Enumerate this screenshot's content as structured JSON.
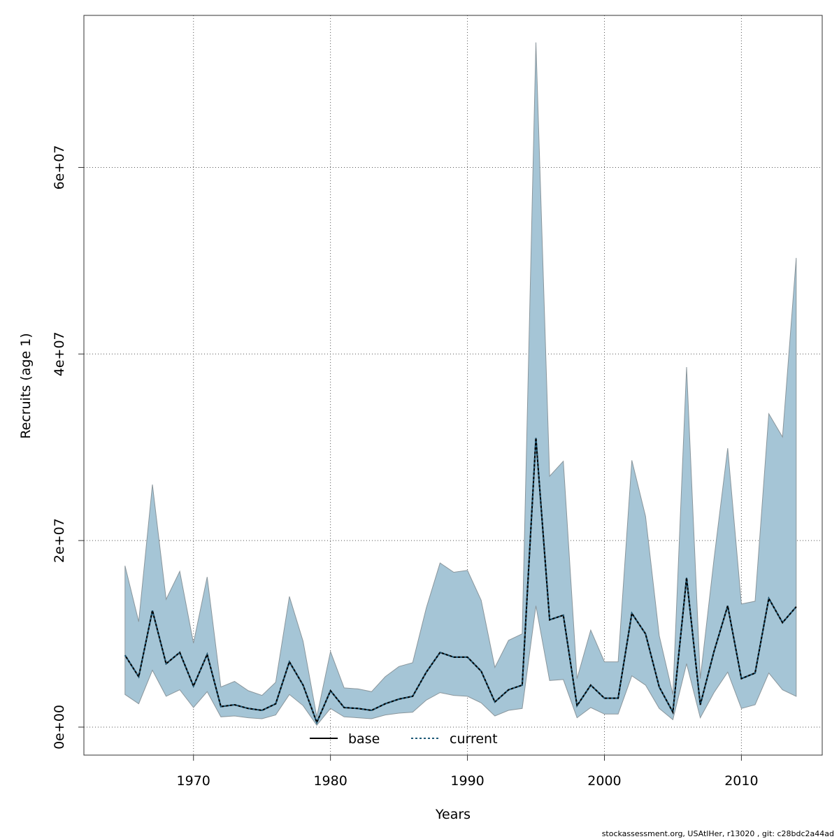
{
  "chart_data": {
    "type": "area",
    "xlabel": "Years",
    "ylabel": "Recruits (age 1)",
    "xlim": [
      1962.0,
      2015.9
    ],
    "ylim": [
      -3000000,
      76300000
    ],
    "x_ticks": [
      1970,
      1980,
      1990,
      2000,
      2010
    ],
    "x_tick_labels": [
      "1970",
      "1980",
      "1990",
      "2000",
      "2010"
    ],
    "y_ticks": [
      0,
      20000000,
      40000000,
      60000000
    ],
    "y_tick_labels": [
      "0e+00",
      "2e+07",
      "4e+07",
      "6e+07"
    ],
    "grid": true,
    "legend_position": "bottom",
    "x": [
      1965,
      1966,
      1967,
      1968,
      1969,
      1970,
      1971,
      1972,
      1973,
      1974,
      1975,
      1976,
      1977,
      1978,
      1979,
      1980,
      1981,
      1982,
      1983,
      1984,
      1985,
      1986,
      1987,
      1988,
      1989,
      1990,
      1991,
      1992,
      1993,
      1994,
      1995,
      1996,
      1997,
      1998,
      1999,
      2000,
      2001,
      2002,
      2003,
      2004,
      2005,
      2006,
      2007,
      2008,
      2009,
      2010,
      2011,
      2012,
      2013,
      2014
    ],
    "series": [
      {
        "name": "base",
        "style": "solid",
        "values": [
          7700000,
          5400000,
          12500000,
          6800000,
          8000000,
          4400000,
          7800000,
          2200000,
          2400000,
          2000000,
          1800000,
          2500000,
          7000000,
          4500000,
          500000,
          3900000,
          2100000,
          2000000,
          1800000,
          2500000,
          3000000,
          3300000,
          5900000,
          8000000,
          7500000,
          7500000,
          6000000,
          2700000,
          4000000,
          4500000,
          31000000,
          11500000,
          12000000,
          2300000,
          4500000,
          3100000,
          3100000,
          12200000,
          10000000,
          4300000,
          1600000,
          16000000,
          2400000,
          8100000,
          13000000,
          5200000,
          5800000,
          13800000,
          11200000,
          12900000
        ]
      },
      {
        "name": "current",
        "style": "dotted",
        "values": [
          7700000,
          5400000,
          12500000,
          6800000,
          8000000,
          4400000,
          7800000,
          2200000,
          2400000,
          2000000,
          1800000,
          2500000,
          7000000,
          4500000,
          500000,
          3900000,
          2100000,
          2000000,
          1800000,
          2500000,
          3000000,
          3300000,
          5900000,
          8000000,
          7500000,
          7500000,
          6000000,
          2700000,
          4000000,
          4500000,
          31000000,
          11500000,
          12000000,
          2300000,
          4500000,
          3100000,
          3100000,
          12200000,
          10000000,
          4300000,
          1600000,
          16000000,
          2400000,
          8100000,
          13000000,
          5200000,
          5800000,
          13800000,
          11200000,
          12900000
        ]
      }
    ],
    "band": {
      "lower": [
        3500000,
        2500000,
        6100000,
        3300000,
        4000000,
        2100000,
        3800000,
        1100000,
        1200000,
        1000000,
        900000,
        1300000,
        3500000,
        2300000,
        200000,
        2000000,
        1100000,
        1000000,
        900000,
        1300000,
        1500000,
        1600000,
        2900000,
        3700000,
        3400000,
        3300000,
        2600000,
        1200000,
        1800000,
        2000000,
        13000000,
        5000000,
        5100000,
        1000000,
        2100000,
        1400000,
        1400000,
        5500000,
        4500000,
        2000000,
        800000,
        6800000,
        1000000,
        3700000,
        5900000,
        2000000,
        2400000,
        5800000,
        4000000,
        3300000
      ],
      "upper": [
        17300000,
        11300000,
        26000000,
        13700000,
        16700000,
        9000000,
        16100000,
        4300000,
        4900000,
        3900000,
        3400000,
        4800000,
        14000000,
        9200000,
        1100000,
        8100000,
        4200000,
        4100000,
        3800000,
        5400000,
        6500000,
        6900000,
        12800000,
        17600000,
        16600000,
        16800000,
        13600000,
        6400000,
        9300000,
        10000000,
        73400000,
        26900000,
        28500000,
        5200000,
        10400000,
        7000000,
        7000000,
        28600000,
        22600000,
        9800000,
        3500000,
        38600000,
        5200000,
        18000000,
        29900000,
        13200000,
        13500000,
        33600000,
        31100000,
        50300000
      ]
    },
    "colors": {
      "band_fill": "#a5c5d6",
      "band_stroke": "#8a969c",
      "base_line": "#000000",
      "current_line": "#1f5a78",
      "grid": "#555555"
    }
  },
  "footer": "stockassessment.org, USAtlHer, r13020 , git: c28bdc2a44ad"
}
